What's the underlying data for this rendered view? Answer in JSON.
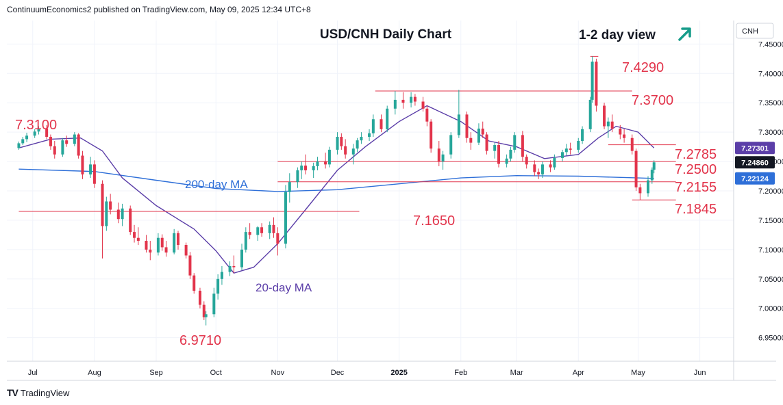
{
  "header": {
    "publisher_line": "ContinuumEconomics2 published on TradingView.com, May 09, 2025 12:34 UTC+8"
  },
  "footer": {
    "logo_text": "TV",
    "brand": "TradingView"
  },
  "chart_data": {
    "type": "candlestick",
    "title": "USD/CNH Daily Chart",
    "view_label": "1-2 day view",
    "view_arrow": "up",
    "symbol": "CNH",
    "ylim": [
      6.91,
      7.49
    ],
    "yticks": [
      "7.45000",
      "7.40000",
      "7.35000",
      "7.30000",
      "7.25000",
      "7.20000",
      "7.15000",
      "7.10000",
      "7.05000",
      "7.00000",
      "6.95000"
    ],
    "ytick_values": [
      7.45,
      7.4,
      7.35,
      7.3,
      7.25,
      7.2,
      7.15,
      7.1,
      7.05,
      7.0,
      6.95
    ],
    "xticks": [
      {
        "label": "Jul",
        "date": "2024-07-01"
      },
      {
        "label": "Aug",
        "date": "2024-08-01"
      },
      {
        "label": "Sep",
        "date": "2024-09-01"
      },
      {
        "label": "Oct",
        "date": "2024-10-01"
      },
      {
        "label": "Nov",
        "date": "2024-11-01"
      },
      {
        "label": "Dec",
        "date": "2024-12-01"
      },
      {
        "label": "2025",
        "date": "2025-01-01",
        "bold": true
      },
      {
        "label": "Feb",
        "date": "2025-02-01"
      },
      {
        "label": "Mar",
        "date": "2025-03-01"
      },
      {
        "label": "Apr",
        "date": "2025-04-01"
      },
      {
        "label": "May",
        "date": "2025-05-01"
      },
      {
        "label": "Jun",
        "date": "2025-06-01"
      }
    ],
    "price_badges": [
      {
        "label": "7.27301",
        "value": 7.27301,
        "color": "#5b3ea8"
      },
      {
        "label": "7.24860",
        "value": 7.2486,
        "color": "#131722"
      },
      {
        "label": "7.22124",
        "value": 7.22124,
        "color": "#2e6fd8"
      }
    ],
    "levels": [
      {
        "label": "7.4290",
        "value": 7.429,
        "from": "2025-04-07",
        "to": "2025-04-11"
      },
      {
        "label": "7.3700",
        "value": 7.37,
        "from": "2024-12-20",
        "to": "2025-04-28"
      },
      {
        "label": "7.2785",
        "value": 7.2785,
        "from": "2025-04-16",
        "to": "2025-05-20"
      },
      {
        "label": "7.2500",
        "value": 7.25,
        "from": "2024-11-01",
        "to": "2025-05-20"
      },
      {
        "label": "7.2155",
        "value": 7.2155,
        "from": "2024-11-01",
        "to": "2025-05-20"
      },
      {
        "label": "7.1845",
        "value": 7.1845,
        "from": "2025-04-28",
        "to": "2025-05-20"
      },
      {
        "label": "7.1650",
        "value": 7.165,
        "from": "2024-06-24",
        "to": "2024-12-12"
      }
    ],
    "extreme_labels": [
      {
        "label": "7.3100",
        "value": 7.31
      },
      {
        "label": "6.9710",
        "value": 6.971
      }
    ],
    "series": [
      {
        "name": "200-day MA",
        "color": "#2e6fd8",
        "points": [
          [
            "2024-06-24",
            7.237
          ],
          [
            "2024-08-01",
            7.233
          ],
          [
            "2024-09-01",
            7.218
          ],
          [
            "2024-10-01",
            7.204
          ],
          [
            "2024-11-01",
            7.199
          ],
          [
            "2024-12-01",
            7.202
          ],
          [
            "2025-01-01",
            7.212
          ],
          [
            "2025-02-01",
            7.222
          ],
          [
            "2025-03-01",
            7.226
          ],
          [
            "2025-04-01",
            7.225
          ],
          [
            "2025-05-01",
            7.222
          ],
          [
            "2025-05-09",
            7.2212
          ]
        ]
      },
      {
        "name": "20-day MA",
        "color": "#5b3ea8",
        "points": [
          [
            "2024-06-24",
            7.273
          ],
          [
            "2024-07-10",
            7.288
          ],
          [
            "2024-07-25",
            7.29
          ],
          [
            "2024-08-05",
            7.268
          ],
          [
            "2024-08-15",
            7.222
          ],
          [
            "2024-09-01",
            7.175
          ],
          [
            "2024-09-20",
            7.135
          ],
          [
            "2024-10-01",
            7.098
          ],
          [
            "2024-10-10",
            7.06
          ],
          [
            "2024-10-20",
            7.07
          ],
          [
            "2024-11-01",
            7.11
          ],
          [
            "2024-11-15",
            7.168
          ],
          [
            "2024-12-01",
            7.235
          ],
          [
            "2024-12-15",
            7.275
          ],
          [
            "2025-01-01",
            7.318
          ],
          [
            "2025-01-15",
            7.345
          ],
          [
            "2025-02-01",
            7.318
          ],
          [
            "2025-02-15",
            7.285
          ],
          [
            "2025-03-01",
            7.275
          ],
          [
            "2025-03-15",
            7.255
          ],
          [
            "2025-04-01",
            7.262
          ],
          [
            "2025-04-11",
            7.29
          ],
          [
            "2025-04-20",
            7.31
          ],
          [
            "2025-05-01",
            7.3
          ],
          [
            "2025-05-09",
            7.273
          ]
        ]
      }
    ],
    "candles": [
      [
        "2024-06-24",
        7.273,
        7.284,
        7.27,
        7.281
      ],
      [
        "2024-06-26",
        7.281,
        7.292,
        7.278,
        7.288
      ],
      [
        "2024-06-28",
        7.288,
        7.299,
        7.283,
        7.294
      ],
      [
        "2024-07-02",
        7.294,
        7.305,
        7.29,
        7.301
      ],
      [
        "2024-07-04",
        7.301,
        7.31,
        7.296,
        7.306
      ],
      [
        "2024-07-08",
        7.306,
        7.312,
        7.288,
        7.292
      ],
      [
        "2024-07-10",
        7.292,
        7.296,
        7.27,
        7.276
      ],
      [
        "2024-07-12",
        7.276,
        7.285,
        7.255,
        7.262
      ],
      [
        "2024-07-16",
        7.262,
        7.29,
        7.258,
        7.286
      ],
      [
        "2024-07-18",
        7.286,
        7.294,
        7.275,
        7.28
      ],
      [
        "2024-07-22",
        7.28,
        7.3,
        7.276,
        7.296
      ],
      [
        "2024-07-24",
        7.296,
        7.298,
        7.255,
        7.26
      ],
      [
        "2024-07-26",
        7.26,
        7.268,
        7.22,
        7.228
      ],
      [
        "2024-07-30",
        7.228,
        7.258,
        7.222,
        7.245
      ],
      [
        "2024-08-01",
        7.245,
        7.252,
        7.205,
        7.212
      ],
      [
        "2024-08-05",
        7.212,
        7.218,
        7.085,
        7.14
      ],
      [
        "2024-08-07",
        7.14,
        7.19,
        7.132,
        7.182
      ],
      [
        "2024-08-09",
        7.182,
        7.195,
        7.16,
        7.168
      ],
      [
        "2024-08-13",
        7.168,
        7.18,
        7.145,
        7.152
      ],
      [
        "2024-08-15",
        7.152,
        7.178,
        7.14,
        7.17
      ],
      [
        "2024-08-19",
        7.17,
        7.175,
        7.125,
        7.13
      ],
      [
        "2024-08-21",
        7.13,
        7.142,
        7.112,
        7.12
      ],
      [
        "2024-08-23",
        7.12,
        7.138,
        7.108,
        7.115
      ],
      [
        "2024-08-27",
        7.115,
        7.125,
        7.095,
        7.1
      ],
      [
        "2024-08-29",
        7.1,
        7.115,
        7.082,
        7.095
      ],
      [
        "2024-09-02",
        7.095,
        7.128,
        7.09,
        7.12
      ],
      [
        "2024-09-04",
        7.12,
        7.126,
        7.098,
        7.104
      ],
      [
        "2024-09-06",
        7.104,
        7.115,
        7.088,
        7.095
      ],
      [
        "2024-09-10",
        7.095,
        7.135,
        7.092,
        7.128
      ],
      [
        "2024-09-12",
        7.128,
        7.132,
        7.1,
        7.108
      ],
      [
        "2024-09-16",
        7.108,
        7.112,
        7.085,
        7.09
      ],
      [
        "2024-09-18",
        7.09,
        7.096,
        7.05,
        7.056
      ],
      [
        "2024-09-20",
        7.056,
        7.06,
        7.025,
        7.03
      ],
      [
        "2024-09-23",
        7.03,
        7.035,
        7.0,
        7.006
      ],
      [
        "2024-09-25",
        7.006,
        7.012,
        6.98,
        6.985
      ],
      [
        "2024-09-26",
        6.985,
        6.995,
        6.971,
        6.99
      ],
      [
        "2024-09-30",
        6.99,
        7.035,
        6.985,
        7.025
      ],
      [
        "2024-10-02",
        7.025,
        7.058,
        7.015,
        7.05
      ],
      [
        "2024-10-04",
        7.05,
        7.072,
        7.04,
        7.062
      ],
      [
        "2024-10-08",
        7.062,
        7.08,
        7.055,
        7.072
      ],
      [
        "2024-10-10",
        7.072,
        7.09,
        7.06,
        7.07
      ],
      [
        "2024-10-14",
        7.07,
        7.11,
        7.065,
        7.1
      ],
      [
        "2024-10-16",
        7.1,
        7.138,
        7.095,
        7.13
      ],
      [
        "2024-10-18",
        7.13,
        7.145,
        7.118,
        7.125
      ],
      [
        "2024-10-22",
        7.125,
        7.14,
        7.115,
        7.138
      ],
      [
        "2024-10-24",
        7.138,
        7.145,
        7.122,
        7.128
      ],
      [
        "2024-10-28",
        7.128,
        7.148,
        7.118,
        7.142
      ],
      [
        "2024-10-30",
        7.142,
        7.155,
        7.12,
        7.128
      ],
      [
        "2024-11-01",
        7.128,
        7.138,
        7.09,
        7.11
      ],
      [
        "2024-11-05",
        7.11,
        7.21,
        7.102,
        7.198
      ],
      [
        "2024-11-07",
        7.198,
        7.23,
        7.18,
        7.215
      ],
      [
        "2024-11-11",
        7.215,
        7.24,
        7.205,
        7.235
      ],
      [
        "2024-11-13",
        7.235,
        7.25,
        7.22,
        7.243
      ],
      [
        "2024-11-15",
        7.243,
        7.262,
        7.228,
        7.235
      ],
      [
        "2024-11-19",
        7.235,
        7.248,
        7.222,
        7.242
      ],
      [
        "2024-11-21",
        7.242,
        7.258,
        7.235,
        7.25
      ],
      [
        "2024-11-25",
        7.25,
        7.265,
        7.238,
        7.245
      ],
      [
        "2024-11-27",
        7.245,
        7.275,
        7.24,
        7.27
      ],
      [
        "2024-12-01",
        7.27,
        7.3,
        7.262,
        7.292
      ],
      [
        "2024-12-03",
        7.292,
        7.298,
        7.27,
        7.276
      ],
      [
        "2024-12-05",
        7.276,
        7.288,
        7.255,
        7.262
      ],
      [
        "2024-12-09",
        7.262,
        7.28,
        7.245,
        7.272
      ],
      [
        "2024-12-11",
        7.272,
        7.29,
        7.266,
        7.286
      ],
      [
        "2024-12-13",
        7.286,
        7.3,
        7.28,
        7.292
      ],
      [
        "2024-12-17",
        7.292,
        7.305,
        7.285,
        7.298
      ],
      [
        "2024-12-19",
        7.298,
        7.33,
        7.292,
        7.322
      ],
      [
        "2024-12-23",
        7.322,
        7.33,
        7.3,
        7.305
      ],
      [
        "2024-12-26",
        7.305,
        7.345,
        7.3,
        7.34
      ],
      [
        "2024-12-30",
        7.34,
        7.37,
        7.33,
        7.355
      ],
      [
        "2025-01-03",
        7.355,
        7.368,
        7.34,
        7.35
      ],
      [
        "2025-01-07",
        7.35,
        7.368,
        7.342,
        7.36
      ],
      [
        "2025-01-09",
        7.36,
        7.365,
        7.345,
        7.352
      ],
      [
        "2025-01-13",
        7.352,
        7.36,
        7.335,
        7.34
      ],
      [
        "2025-01-15",
        7.34,
        7.345,
        7.31,
        7.318
      ],
      [
        "2025-01-17",
        7.318,
        7.322,
        7.265,
        7.272
      ],
      [
        "2025-01-21",
        7.272,
        7.285,
        7.242,
        7.25
      ],
      [
        "2025-01-23",
        7.25,
        7.268,
        7.236,
        7.262
      ],
      [
        "2025-01-27",
        7.262,
        7.3,
        7.255,
        7.295
      ],
      [
        "2025-01-31",
        7.295,
        7.372,
        7.29,
        7.33
      ],
      [
        "2025-02-04",
        7.33,
        7.335,
        7.282,
        7.29
      ],
      [
        "2025-02-06",
        7.29,
        7.3,
        7.27,
        7.282
      ],
      [
        "2025-02-10",
        7.282,
        7.315,
        7.278,
        7.306
      ],
      [
        "2025-02-12",
        7.306,
        7.318,
        7.29,
        7.296
      ],
      [
        "2025-02-14",
        7.296,
        7.3,
        7.262,
        7.268
      ],
      [
        "2025-02-18",
        7.268,
        7.282,
        7.255,
        7.278
      ],
      [
        "2025-02-20",
        7.278,
        7.285,
        7.24,
        7.246
      ],
      [
        "2025-02-24",
        7.246,
        7.262,
        7.24,
        7.255
      ],
      [
        "2025-02-26",
        7.255,
        7.275,
        7.25,
        7.27
      ],
      [
        "2025-02-28",
        7.27,
        7.3,
        7.265,
        7.295
      ],
      [
        "2025-03-04",
        7.295,
        7.302,
        7.25,
        7.258
      ],
      [
        "2025-03-06",
        7.258,
        7.262,
        7.238,
        7.245
      ],
      [
        "2025-03-10",
        7.245,
        7.252,
        7.225,
        7.232
      ],
      [
        "2025-03-12",
        7.232,
        7.238,
        7.22,
        7.228
      ],
      [
        "2025-03-14",
        7.228,
        7.25,
        7.222,
        7.245
      ],
      [
        "2025-03-18",
        7.245,
        7.252,
        7.232,
        7.24
      ],
      [
        "2025-03-20",
        7.24,
        7.262,
        7.236,
        7.256
      ],
      [
        "2025-03-24",
        7.256,
        7.27,
        7.25,
        7.266
      ],
      [
        "2025-03-26",
        7.266,
        7.28,
        7.26,
        7.272
      ],
      [
        "2025-03-28",
        7.272,
        7.282,
        7.262,
        7.27
      ],
      [
        "2025-04-01",
        7.27,
        7.29,
        7.265,
        7.285
      ],
      [
        "2025-04-03",
        7.285,
        7.31,
        7.28,
        7.305
      ],
      [
        "2025-04-07",
        7.305,
        7.36,
        7.3,
        7.355
      ],
      [
        "2025-04-08",
        7.355,
        7.429,
        7.35,
        7.42
      ],
      [
        "2025-04-10",
        7.42,
        7.425,
        7.335,
        7.345
      ],
      [
        "2025-04-14",
        7.345,
        7.35,
        7.305,
        7.31
      ],
      [
        "2025-04-16",
        7.31,
        7.325,
        7.29,
        7.318
      ],
      [
        "2025-04-18",
        7.318,
        7.33,
        7.3,
        7.306
      ],
      [
        "2025-04-22",
        7.306,
        7.312,
        7.288,
        7.296
      ],
      [
        "2025-04-24",
        7.296,
        7.305,
        7.282,
        7.29
      ],
      [
        "2025-04-28",
        7.29,
        7.296,
        7.262,
        7.268
      ],
      [
        "2025-04-30",
        7.268,
        7.272,
        7.2,
        7.206
      ],
      [
        "2025-05-02",
        7.206,
        7.212,
        7.1845,
        7.196
      ],
      [
        "2025-05-06",
        7.196,
        7.225,
        7.19,
        7.218
      ],
      [
        "2025-05-08",
        7.218,
        7.24,
        7.212,
        7.236
      ],
      [
        "2025-05-09",
        7.236,
        7.252,
        7.23,
        7.2486
      ]
    ]
  }
}
